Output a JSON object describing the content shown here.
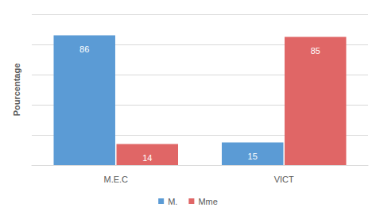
{
  "chart_data": {
    "type": "bar",
    "categories": [
      "M.E.C",
      "VICT"
    ],
    "series": [
      {
        "name": "M.",
        "color": "#5b9bd5",
        "values": [
          86,
          15
        ]
      },
      {
        "name": "Mme",
        "color": "#e06666",
        "values": [
          14,
          85
        ]
      }
    ],
    "y_label": "Pourcentage",
    "ylim": [
      0,
      100
    ],
    "yticks": [
      0,
      20,
      40,
      60,
      80,
      100
    ],
    "grid": true,
    "legend": "bottom",
    "data_labels": true,
    "tick_labels": "x"
  }
}
